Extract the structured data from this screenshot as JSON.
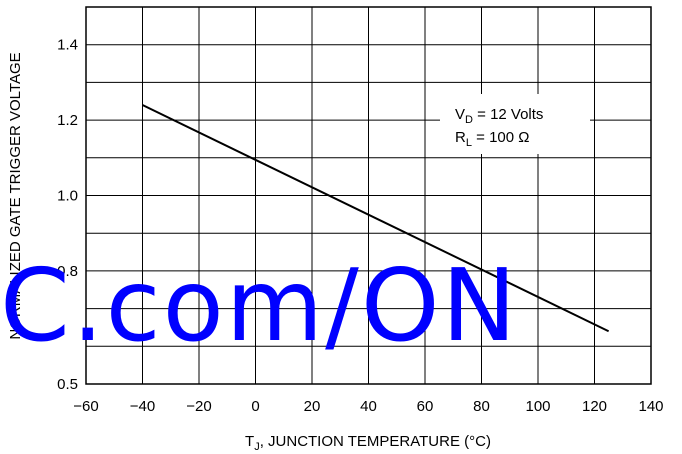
{
  "chart_data": {
    "type": "line",
    "title": "",
    "xlabel": {
      "main": "T",
      "sub": "J",
      "rest": ", JUNCTION TEMPERATURE (°C)"
    },
    "ylabel": "NORMALIZED GATE TRIGGER VOLTAGE",
    "xlim": [
      -60,
      140
    ],
    "ylim": [
      0.5,
      1.5
    ],
    "x_ticks": [
      -60,
      -40,
      -20,
      0,
      20,
      40,
      60,
      80,
      100,
      120,
      140
    ],
    "y_tick_labels": [
      0.5,
      0.8,
      1.0,
      1.2,
      1.4
    ],
    "grid": true,
    "series": [
      {
        "x": [
          -40,
          125
        ],
        "y": [
          1.24,
          0.64
        ]
      }
    ],
    "annotations": [
      {
        "main": "V",
        "sub": "D",
        "rest": " = 12 Volts"
      },
      {
        "main": "R",
        "sub": "L",
        "rest": " = 100 Ω"
      }
    ],
    "legend_position": "top-right"
  },
  "watermark": "C.com/ON"
}
